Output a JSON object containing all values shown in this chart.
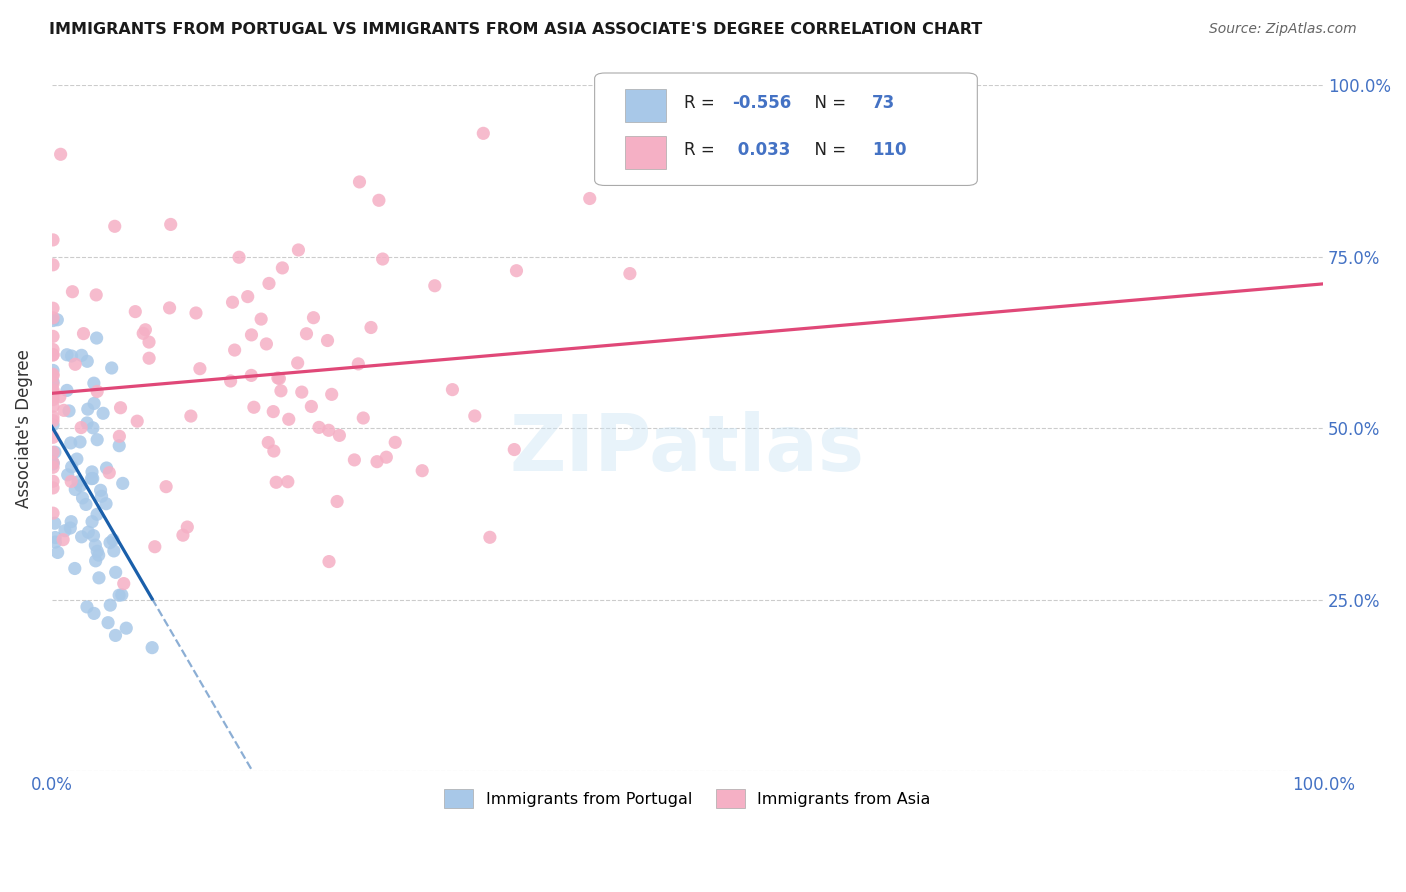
{
  "title": "IMMIGRANTS FROM PORTUGAL VS IMMIGRANTS FROM ASIA ASSOCIATE'S DEGREE CORRELATION CHART",
  "source": "Source: ZipAtlas.com",
  "ylabel": "Associate's Degree",
  "legend_label1": "Immigrants from Portugal",
  "legend_label2": "Immigrants from Asia",
  "R1": -0.556,
  "N1": 73,
  "R2": 0.033,
  "N2": 110,
  "color_portugal": "#a8c8e8",
  "color_portugal_line": "#1a5faa",
  "color_asia": "#f5b0c5",
  "color_asia_line": "#e04878",
  "color_axis_labels": "#4472c4",
  "background": "#ffffff",
  "watermark": "ZIPatlas",
  "grid_color": "#cccccc",
  "title_color": "#1a1a1a",
  "source_color": "#666666",
  "xlim": [
    0,
    1.0
  ],
  "ylim": [
    0,
    1.0
  ],
  "xticks": [
    0,
    0.25,
    0.5,
    0.75,
    1.0
  ],
  "yticks": [
    0,
    0.25,
    0.5,
    0.75,
    1.0
  ],
  "right_ytick_labels": [
    "",
    "25.0%",
    "50.0%",
    "75.0%",
    "100.0%"
  ]
}
